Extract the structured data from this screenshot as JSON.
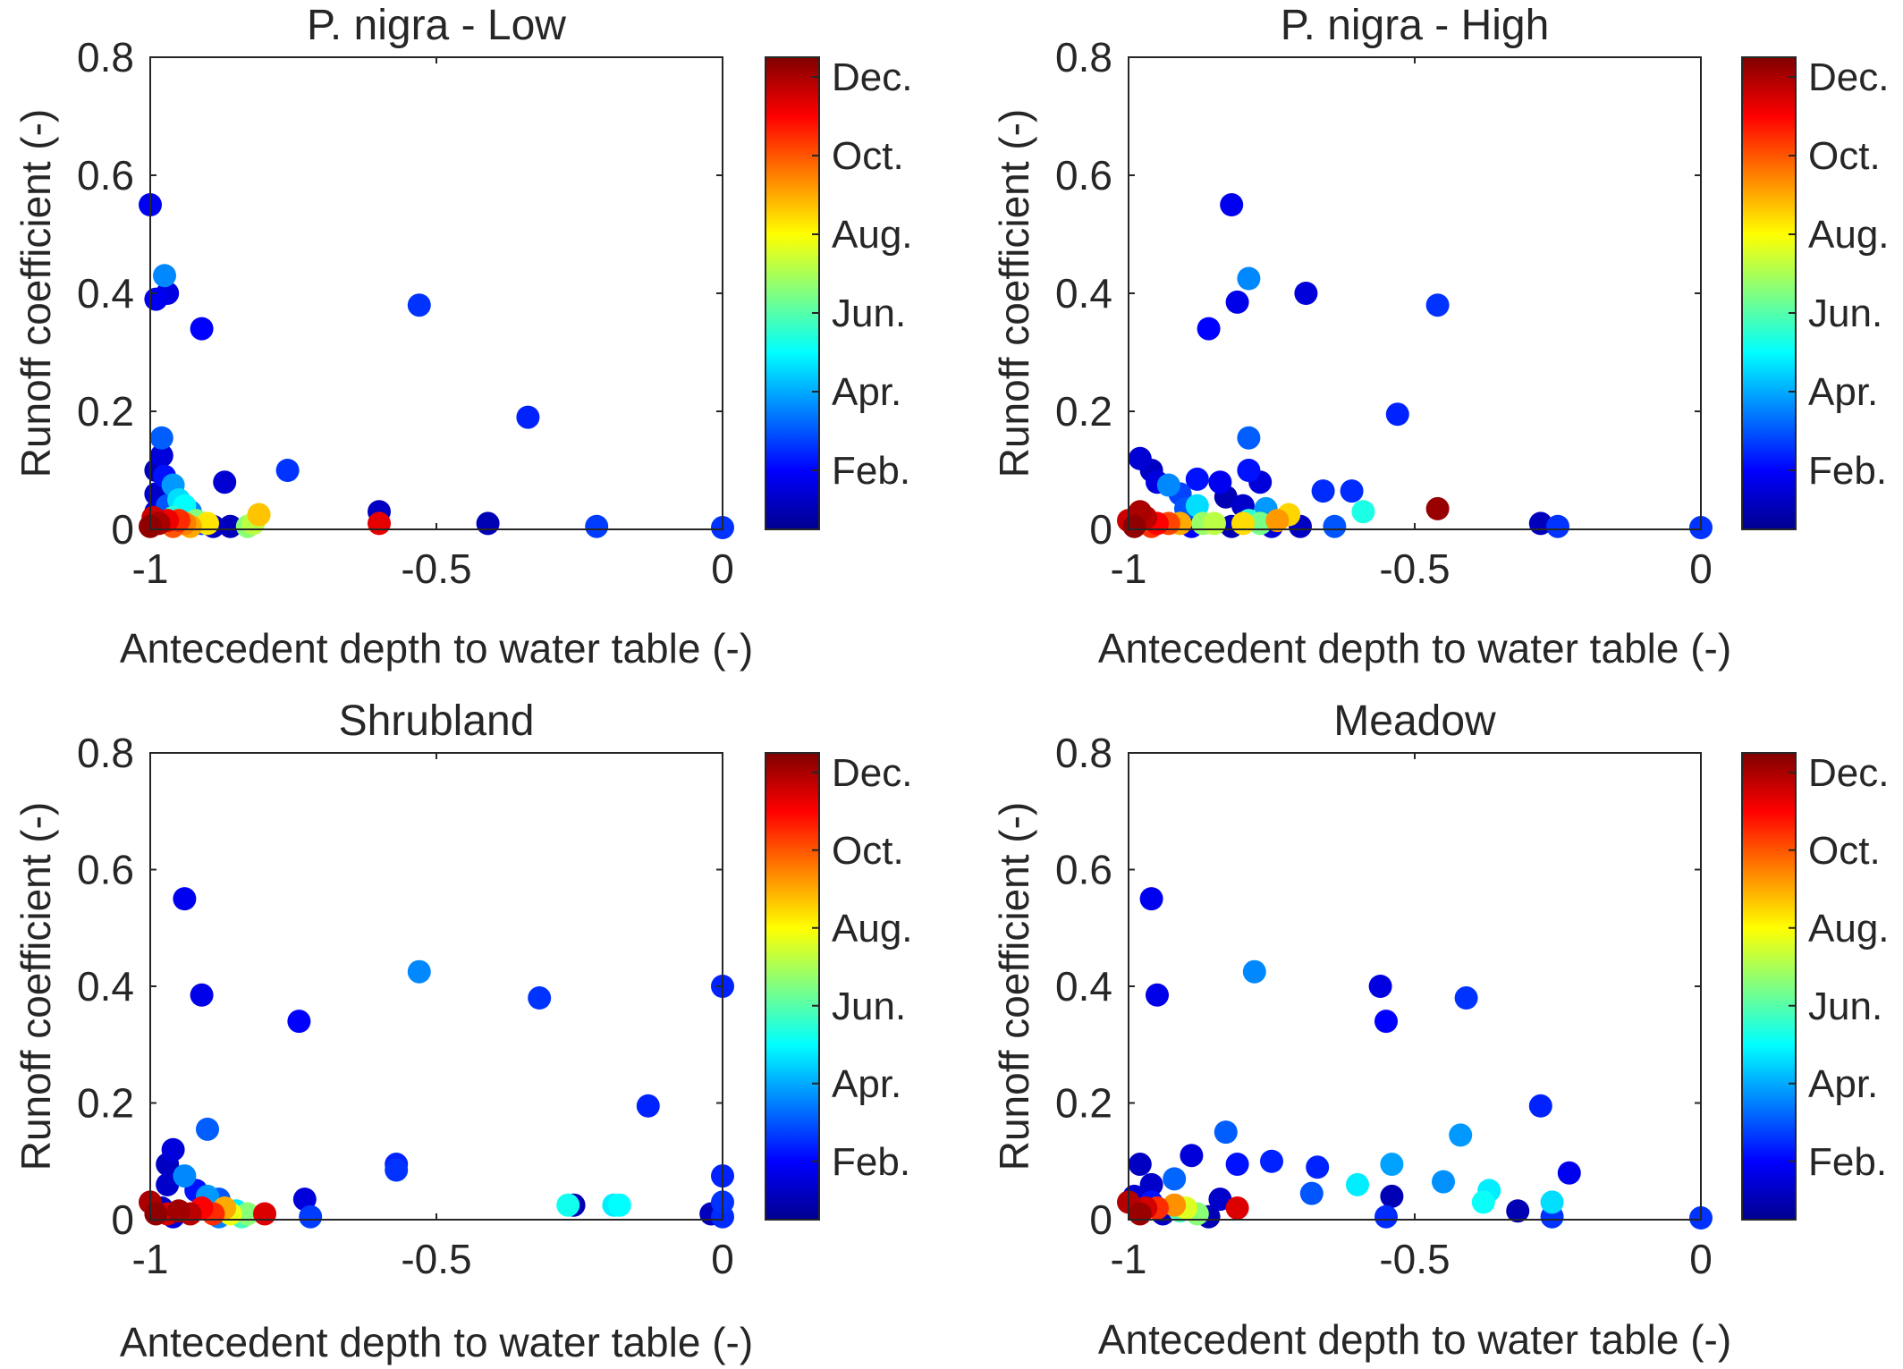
{
  "colormap": [
    "#00008f",
    "#0000ff",
    "#0080ff",
    "#00ffff",
    "#80ff80",
    "#ffff00",
    "#ff8000",
    "#ff0000",
    "#800000"
  ],
  "colorbar": {
    "tick_labels": [
      "Feb.",
      "Apr.",
      "Jun.",
      "Aug.",
      "Oct.",
      "Dec."
    ],
    "tick_months": [
      2,
      4,
      6,
      8,
      10,
      12
    ],
    "range": [
      0.5,
      12.5
    ]
  },
  "chart_data": [
    {
      "type": "scatter",
      "title": "P. nigra - Low",
      "xlabel": "Antecedent depth to water table (-)",
      "ylabel": "Runoff coefficient (-)",
      "xlim": [
        -1,
        0
      ],
      "ylim": [
        0,
        0.8
      ],
      "xticks": [
        -1,
        -0.5,
        0
      ],
      "xtick_labels": [
        "-1",
        "-0.5",
        "0"
      ],
      "yticks": [
        0,
        0.2,
        0.4,
        0.6,
        0.8
      ],
      "ytick_labels": [
        "0",
        "0.2",
        "0.4",
        "0.6",
        "0.8"
      ],
      "grid": false,
      "color_by": "month",
      "points": [
        {
          "x": -0.34,
          "y": 0.19,
          "month": 2.4
        },
        {
          "x": -0.53,
          "y": 0.38,
          "month": 2.6
        },
        {
          "x": -0.22,
          "y": 0.005,
          "month": 2.7
        },
        {
          "x": 0,
          "y": 0.003,
          "month": 2.6
        },
        {
          "x": -0.41,
          "y": 0.01,
          "month": 1
        },
        {
          "x": -0.6,
          "y": 0.03,
          "month": 1.2
        },
        {
          "x": -0.6,
          "y": 0.01,
          "month": 11.3
        },
        {
          "x": -1,
          "y": 0.55,
          "month": 1.8
        },
        {
          "x": -0.99,
          "y": 0.39,
          "month": 1.8
        },
        {
          "x": -0.97,
          "y": 0.4,
          "month": 1.6
        },
        {
          "x": -0.975,
          "y": 0.43,
          "month": 3.6
        },
        {
          "x": -0.91,
          "y": 0.34,
          "month": 2
        },
        {
          "x": -0.76,
          "y": 0.1,
          "month": 2.6
        },
        {
          "x": -0.87,
          "y": 0.08,
          "month": 1.4
        },
        {
          "x": -0.98,
          "y": 0.155,
          "month": 3.1
        },
        {
          "x": -0.98,
          "y": 0.125,
          "month": 1.5
        },
        {
          "x": -0.99,
          "y": 0.1,
          "month": 1
        },
        {
          "x": -0.975,
          "y": 0.09,
          "month": 2.2
        },
        {
          "x": -0.96,
          "y": 0.075,
          "month": 3.8
        },
        {
          "x": -0.99,
          "y": 0.06,
          "month": 1.3
        },
        {
          "x": -0.95,
          "y": 0.05,
          "month": 4.6
        },
        {
          "x": -0.94,
          "y": 0.04,
          "month": 5
        },
        {
          "x": -0.97,
          "y": 0.04,
          "month": 3
        },
        {
          "x": -0.99,
          "y": 0.03,
          "month": 1.5
        },
        {
          "x": -0.93,
          "y": 0.03,
          "month": 3.5
        },
        {
          "x": -0.96,
          "y": 0.02,
          "month": 5.5
        },
        {
          "x": -0.92,
          "y": 0.015,
          "month": 6.5
        },
        {
          "x": -0.9,
          "y": 0.01,
          "month": 8.3
        },
        {
          "x": -0.89,
          "y": 0.005,
          "month": 1.2
        },
        {
          "x": -0.86,
          "y": 0.005,
          "month": 1.1
        },
        {
          "x": -0.83,
          "y": 0.005,
          "month": 6.6
        },
        {
          "x": -0.82,
          "y": 0.01,
          "month": 7.2
        },
        {
          "x": -0.81,
          "y": 0.025,
          "month": 8.7
        },
        {
          "x": -0.91,
          "y": 0.01,
          "month": 2.8
        },
        {
          "x": -0.94,
          "y": 0.01,
          "month": 9.5
        },
        {
          "x": -0.95,
          "y": 0.015,
          "month": 10.5
        },
        {
          "x": -0.97,
          "y": 0.015,
          "month": 11.2
        },
        {
          "x": -0.985,
          "y": 0.01,
          "month": 12
        },
        {
          "x": -1,
          "y": 0.005,
          "month": 12.3
        },
        {
          "x": -0.995,
          "y": 0.02,
          "month": 11.6
        },
        {
          "x": -0.96,
          "y": 0.005,
          "month": 10
        },
        {
          "x": -0.93,
          "y": 0.005,
          "month": 9
        }
      ]
    },
    {
      "type": "scatter",
      "title": "P. nigra - High",
      "xlabel": "Antecedent depth to water table (-)",
      "ylabel": "Runoff coefficient (-)",
      "xlim": [
        -1,
        0
      ],
      "ylim": [
        0,
        0.8
      ],
      "xticks": [
        -1,
        -0.5,
        0
      ],
      "xtick_labels": [
        "-1",
        "-0.5",
        "0"
      ],
      "yticks": [
        0,
        0.2,
        0.4,
        0.6,
        0.8
      ],
      "ytick_labels": [
        "0",
        "0.2",
        "0.4",
        "0.6",
        "0.8"
      ],
      "grid": false,
      "color_by": "month",
      "points": [
        {
          "x": -0.82,
          "y": 0.55,
          "month": 1.8
        },
        {
          "x": -0.79,
          "y": 0.425,
          "month": 3.6
        },
        {
          "x": -0.81,
          "y": 0.385,
          "month": 1.7
        },
        {
          "x": -0.69,
          "y": 0.4,
          "month": 1.5
        },
        {
          "x": -0.86,
          "y": 0.34,
          "month": 2
        },
        {
          "x": -0.46,
          "y": 0.38,
          "month": 2.6
        },
        {
          "x": -0.53,
          "y": 0.195,
          "month": 2.4
        },
        {
          "x": -0.79,
          "y": 0.155,
          "month": 3.1
        },
        {
          "x": -0.79,
          "y": 0.1,
          "month": 2.2
        },
        {
          "x": -0.77,
          "y": 0.08,
          "month": 1.5
        },
        {
          "x": -0.98,
          "y": 0.12,
          "month": 1.4
        },
        {
          "x": -0.96,
          "y": 0.1,
          "month": 1.2
        },
        {
          "x": -0.95,
          "y": 0.08,
          "month": 1.6
        },
        {
          "x": -0.93,
          "y": 0.075,
          "month": 3.6
        },
        {
          "x": -0.88,
          "y": 0.085,
          "month": 2.2
        },
        {
          "x": -0.84,
          "y": 0.08,
          "month": 1.8
        },
        {
          "x": -0.83,
          "y": 0.055,
          "month": 1
        },
        {
          "x": -0.91,
          "y": 0.06,
          "month": 2.8
        },
        {
          "x": -0.88,
          "y": 0.04,
          "month": 4.6
        },
        {
          "x": -0.9,
          "y": 0.035,
          "month": 3
        },
        {
          "x": -0.8,
          "y": 0.04,
          "month": 1.3
        },
        {
          "x": -0.76,
          "y": 0.035,
          "month": 3.8
        },
        {
          "x": -0.66,
          "y": 0.065,
          "month": 2.5
        },
        {
          "x": -0.61,
          "y": 0.065,
          "month": 2.5
        },
        {
          "x": -0.59,
          "y": 0.03,
          "month": 5.3
        },
        {
          "x": -0.46,
          "y": 0.035,
          "month": 12.2
        },
        {
          "x": -0.28,
          "y": 0.01,
          "month": 1.1
        },
        {
          "x": -0.25,
          "y": 0.005,
          "month": 2.6
        },
        {
          "x": 0,
          "y": 0.003,
          "month": 2.6
        },
        {
          "x": -0.64,
          "y": 0.005,
          "month": 3
        },
        {
          "x": -0.72,
          "y": 0.025,
          "month": 8.5
        },
        {
          "x": -0.74,
          "y": 0.015,
          "month": 9.2
        },
        {
          "x": -0.77,
          "y": 0.01,
          "month": 6.4
        },
        {
          "x": -0.79,
          "y": 0.015,
          "month": 5.5
        },
        {
          "x": -0.8,
          "y": 0.01,
          "month": 8.4
        },
        {
          "x": -0.82,
          "y": 0.005,
          "month": 1
        },
        {
          "x": -0.85,
          "y": 0.01,
          "month": 7.2
        },
        {
          "x": -0.87,
          "y": 0.01,
          "month": 6.8
        },
        {
          "x": -0.89,
          "y": 0.005,
          "month": 2
        },
        {
          "x": -0.91,
          "y": 0.01,
          "month": 9
        },
        {
          "x": -0.93,
          "y": 0.01,
          "month": 10.2
        },
        {
          "x": -0.95,
          "y": 0.01,
          "month": 11
        },
        {
          "x": -0.97,
          "y": 0.02,
          "month": 11.8
        },
        {
          "x": -0.99,
          "y": 0.005,
          "month": 12.3
        },
        {
          "x": -1,
          "y": 0.015,
          "month": 11.6
        },
        {
          "x": -0.96,
          "y": 0.005,
          "month": 10.4
        },
        {
          "x": -0.98,
          "y": 0.03,
          "month": 12
        },
        {
          "x": -0.7,
          "y": 0.005,
          "month": 1.2
        },
        {
          "x": -0.75,
          "y": 0.005,
          "month": 1.5
        }
      ]
    },
    {
      "type": "scatter",
      "title": "Shrubland",
      "xlabel": "Antecedent depth to water table (-)",
      "ylabel": "Runoff coefficient (-)",
      "xlim": [
        -1,
        0
      ],
      "ylim": [
        0,
        0.8
      ],
      "xticks": [
        -1,
        -0.5,
        0
      ],
      "xtick_labels": [
        "-1",
        "-0.5",
        "0"
      ],
      "yticks": [
        0,
        0.2,
        0.4,
        0.6,
        0.8
      ],
      "ytick_labels": [
        "0",
        "0.2",
        "0.4",
        "0.6",
        "0.8"
      ],
      "grid": false,
      "color_by": "month",
      "points": [
        {
          "x": -0.94,
          "y": 0.55,
          "month": 1.8
        },
        {
          "x": -0.91,
          "y": 0.385,
          "month": 1.7
        },
        {
          "x": -0.74,
          "y": 0.34,
          "month": 2
        },
        {
          "x": -0.53,
          "y": 0.425,
          "month": 3.6
        },
        {
          "x": -0.32,
          "y": 0.38,
          "month": 2.6
        },
        {
          "x": 0,
          "y": 0.4,
          "month": 2.4
        },
        {
          "x": -0.13,
          "y": 0.195,
          "month": 2.4
        },
        {
          "x": -0.9,
          "y": 0.155,
          "month": 3.1
        },
        {
          "x": -0.96,
          "y": 0.12,
          "month": 1.5
        },
        {
          "x": -0.97,
          "y": 0.095,
          "month": 1.2
        },
        {
          "x": -0.57,
          "y": 0.095,
          "month": 2.4
        },
        {
          "x": -0.57,
          "y": 0.085,
          "month": 2.6
        },
        {
          "x": 0,
          "y": 0.075,
          "month": 2.4
        },
        {
          "x": -0.94,
          "y": 0.075,
          "month": 3.6
        },
        {
          "x": -0.97,
          "y": 0.06,
          "month": 1.3
        },
        {
          "x": -0.92,
          "y": 0.05,
          "month": 2.2
        },
        {
          "x": -0.9,
          "y": 0.04,
          "month": 3.8
        },
        {
          "x": -0.88,
          "y": 0.035,
          "month": 3
        },
        {
          "x": -0.73,
          "y": 0.035,
          "month": 1.5
        },
        {
          "x": -0.27,
          "y": 0.025,
          "month": 5.2
        },
        {
          "x": -0.26,
          "y": 0.025,
          "month": 1
        },
        {
          "x": -0.19,
          "y": 0.025,
          "month": 4.8
        },
        {
          "x": -0.18,
          "y": 0.025,
          "month": 5
        },
        {
          "x": 0,
          "y": 0.03,
          "month": 2.6
        },
        {
          "x": -0.02,
          "y": 0.01,
          "month": 1.1
        },
        {
          "x": -0.72,
          "y": 0.005,
          "month": 2.7
        },
        {
          "x": -0.8,
          "y": 0.01,
          "month": 11.4
        },
        {
          "x": -0.83,
          "y": 0.01,
          "month": 6.6
        },
        {
          "x": -0.85,
          "y": 0.015,
          "month": 4.8
        },
        {
          "x": -0.86,
          "y": 0.01,
          "month": 7.8
        },
        {
          "x": -0.87,
          "y": 0.02,
          "month": 9
        },
        {
          "x": -0.89,
          "y": 0.01,
          "month": 10.5
        },
        {
          "x": -0.91,
          "y": 0.02,
          "month": 11
        },
        {
          "x": -0.93,
          "y": 0.01,
          "month": 11.8
        },
        {
          "x": -0.95,
          "y": 0.015,
          "month": 12.1
        },
        {
          "x": -0.97,
          "y": 0.01,
          "month": 11.5
        },
        {
          "x": -0.99,
          "y": 0.01,
          "month": 12.3
        },
        {
          "x": -1,
          "y": 0.03,
          "month": 12
        },
        {
          "x": -0.98,
          "y": 0.02,
          "month": 1.2
        },
        {
          "x": -0.96,
          "y": 0.005,
          "month": 1.5
        },
        {
          "x": -0.88,
          "y": 0.005,
          "month": 3.5
        },
        {
          "x": -0.84,
          "y": 0.005,
          "month": 5.8
        },
        {
          "x": 0,
          "y": 0.005,
          "month": 2.5
        }
      ]
    },
    {
      "type": "scatter",
      "title": "Meadow",
      "xlabel": "Antecedent depth to water table (-)",
      "ylabel": "Runoff coefficient (-)",
      "xlim": [
        -1,
        0
      ],
      "ylim": [
        0,
        0.8
      ],
      "xticks": [
        -1,
        -0.5,
        0
      ],
      "xtick_labels": [
        "-1",
        "-0.5",
        "0"
      ],
      "yticks": [
        0,
        0.2,
        0.4,
        0.6,
        0.8
      ],
      "ytick_labels": [
        "0",
        "0.2",
        "0.4",
        "0.6",
        "0.8"
      ],
      "grid": false,
      "color_by": "month",
      "points": [
        {
          "x": -0.96,
          "y": 0.55,
          "month": 1.8
        },
        {
          "x": -0.95,
          "y": 0.385,
          "month": 1.7
        },
        {
          "x": -0.78,
          "y": 0.425,
          "month": 3.6
        },
        {
          "x": -0.56,
          "y": 0.4,
          "month": 1.6
        },
        {
          "x": -0.55,
          "y": 0.34,
          "month": 2
        },
        {
          "x": -0.41,
          "y": 0.38,
          "month": 2.6
        },
        {
          "x": -0.28,
          "y": 0.195,
          "month": 2.4
        },
        {
          "x": -0.23,
          "y": 0.08,
          "month": 1.8
        },
        {
          "x": -0.83,
          "y": 0.15,
          "month": 3.1
        },
        {
          "x": -0.42,
          "y": 0.145,
          "month": 3.8
        },
        {
          "x": -0.89,
          "y": 0.11,
          "month": 1.5
        },
        {
          "x": -0.75,
          "y": 0.1,
          "month": 2.4
        },
        {
          "x": -0.81,
          "y": 0.095,
          "month": 2.2
        },
        {
          "x": -0.67,
          "y": 0.09,
          "month": 2.4
        },
        {
          "x": -0.54,
          "y": 0.095,
          "month": 3.9
        },
        {
          "x": -0.98,
          "y": 0.095,
          "month": 1.2
        },
        {
          "x": -0.92,
          "y": 0.07,
          "month": 3.2
        },
        {
          "x": -0.96,
          "y": 0.06,
          "month": 1.3
        },
        {
          "x": -0.6,
          "y": 0.06,
          "month": 4.8
        },
        {
          "x": -0.45,
          "y": 0.065,
          "month": 3.7
        },
        {
          "x": -0.37,
          "y": 0.05,
          "month": 4.8
        },
        {
          "x": -0.68,
          "y": 0.045,
          "month": 3
        },
        {
          "x": -0.54,
          "y": 0.04,
          "month": 1
        },
        {
          "x": -0.38,
          "y": 0.03,
          "month": 5.1
        },
        {
          "x": -0.26,
          "y": 0.03,
          "month": 4.6
        },
        {
          "x": -0.32,
          "y": 0.015,
          "month": 1
        },
        {
          "x": -0.26,
          "y": 0.005,
          "month": 2.6
        },
        {
          "x": -0.55,
          "y": 0.005,
          "month": 2.5
        },
        {
          "x": 0,
          "y": 0.003,
          "month": 2.6
        },
        {
          "x": -0.81,
          "y": 0.02,
          "month": 11.4
        },
        {
          "x": -0.86,
          "y": 0.005,
          "month": 1
        },
        {
          "x": -0.88,
          "y": 0.01,
          "month": 6.6
        },
        {
          "x": -0.9,
          "y": 0.02,
          "month": 7.6
        },
        {
          "x": -0.91,
          "y": 0.015,
          "month": 5.8
        },
        {
          "x": -0.92,
          "y": 0.025,
          "month": 9.3
        },
        {
          "x": -0.94,
          "y": 0.01,
          "month": 1.2
        },
        {
          "x": -0.95,
          "y": 0.02,
          "month": 10.5
        },
        {
          "x": -0.97,
          "y": 0.02,
          "month": 11.5
        },
        {
          "x": -0.98,
          "y": 0.01,
          "month": 12.2
        },
        {
          "x": -1,
          "y": 0.03,
          "month": 11.9
        },
        {
          "x": -0.99,
          "y": 0.04,
          "month": 1.4
        },
        {
          "x": -0.96,
          "y": 0.03,
          "month": 2.2
        },
        {
          "x": -0.84,
          "y": 0.035,
          "month": 1.3
        }
      ]
    }
  ]
}
